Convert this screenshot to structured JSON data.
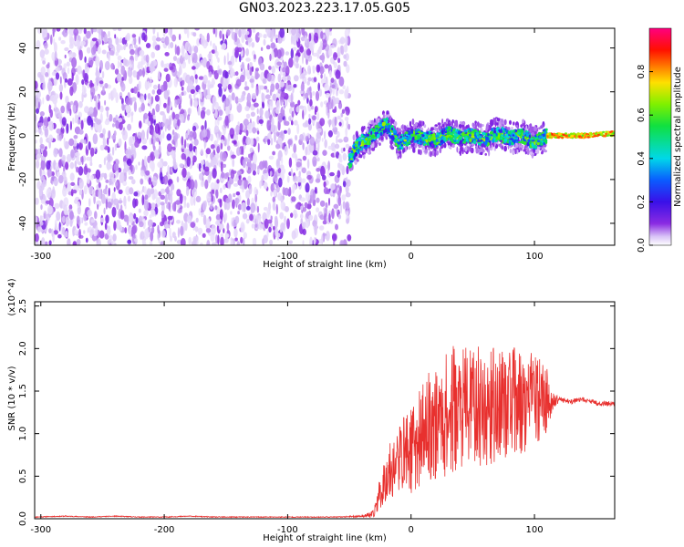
{
  "title": "GN03.2023.223.17.05.G05",
  "colorbar": {
    "label": "Normalized spectral amplitude",
    "ticks": [
      "0.0",
      "0.2",
      "0.4",
      "0.6",
      "0.8"
    ]
  },
  "chart_data": [
    {
      "type": "heatmap",
      "title": "",
      "xlabel": "Height of straight line (km)",
      "ylabel": "Frequency (Hz)",
      "xlim": [
        -305,
        165
      ],
      "ylim": [
        -50,
        49
      ],
      "xticks": [
        "-300",
        "-200",
        "-100",
        "0",
        "100"
      ],
      "yticks": [
        "-40",
        "-20",
        "0",
        "20",
        "40"
      ],
      "colormap": "rainbow (violet to red)",
      "color_range": [
        0.0,
        1.0
      ],
      "regions": [
        {
          "x_range": [
            -305,
            -50
          ],
          "description": "Scattered noise across all frequencies, amplitudes 0.0-0.1"
        },
        {
          "x_range": [
            -50,
            110
          ],
          "description": "Signal band near 0 Hz, amplitudes 0.2-0.9"
        },
        {
          "x_range": [
            110,
            165
          ],
          "description": "Steady line at 0 Hz, amplitude ~0.7-0.9"
        }
      ],
      "signal_trace": {
        "x": [
          -50,
          -45,
          -40,
          -35,
          -30,
          -25,
          -20,
          -15,
          -10,
          -5,
          0,
          10,
          20,
          30,
          40,
          50,
          60,
          70,
          80,
          90,
          100,
          110,
          120,
          140,
          165
        ],
        "y": [
          -12,
          -6,
          -3,
          -2,
          1,
          3,
          5,
          1,
          -4,
          -2,
          0,
          -1,
          -2,
          1,
          -1,
          0,
          -2,
          1,
          -1,
          0,
          -3,
          0,
          0,
          0,
          1
        ]
      }
    },
    {
      "type": "line",
      "title": "",
      "xlabel": "Height of straight line (km)",
      "ylabel": "SNR (10 * v/v)",
      "y_multiplier": "(x10^4)",
      "xlim": [
        -305,
        165
      ],
      "ylim": [
        0,
        2.55
      ],
      "xticks": [
        "-300",
        "-200",
        "-100",
        "0",
        "100"
      ],
      "yticks": [
        "0.0",
        "0.5",
        "1.0",
        "1.5",
        "2.0",
        "2.5"
      ],
      "series": [
        {
          "color": "#e8302e",
          "x": [
            -305,
            -280,
            -260,
            -240,
            -220,
            -200,
            -180,
            -160,
            -140,
            -120,
            -100,
            -80,
            -60,
            -40,
            -30,
            -28,
            -25,
            -20,
            -15,
            -10,
            -5,
            0,
            5,
            10,
            15,
            20,
            25,
            30,
            35,
            40,
            50,
            60,
            70,
            80,
            90,
            100,
            110,
            115,
            120,
            130,
            140,
            150,
            165
          ],
          "y": [
            0.02,
            0.03,
            0.02,
            0.03,
            0.02,
            0.02,
            0.03,
            0.02,
            0.02,
            0.02,
            0.02,
            0.02,
            0.02,
            0.03,
            0.05,
            0.2,
            0.3,
            0.5,
            0.6,
            0.7,
            0.8,
            0.8,
            0.9,
            1.0,
            1.1,
            1.1,
            1.2,
            1.2,
            1.3,
            1.3,
            1.35,
            1.3,
            1.35,
            1.4,
            1.35,
            1.4,
            1.4,
            1.38,
            1.4,
            1.38,
            1.4,
            1.36,
            1.35
          ],
          "noise_amplitude": [
            0.005,
            0.005,
            0.005,
            0.005,
            0.005,
            0.005,
            0.005,
            0.005,
            0.005,
            0.005,
            0.005,
            0.005,
            0.005,
            0.01,
            0.05,
            0.15,
            0.2,
            0.3,
            0.35,
            0.4,
            0.45,
            0.5,
            0.55,
            0.6,
            0.65,
            0.65,
            0.7,
            0.75,
            0.75,
            0.7,
            0.7,
            0.7,
            0.7,
            0.65,
            0.6,
            0.55,
            0.4,
            0.1,
            0.03,
            0.03,
            0.03,
            0.03,
            0.03
          ]
        }
      ]
    }
  ]
}
